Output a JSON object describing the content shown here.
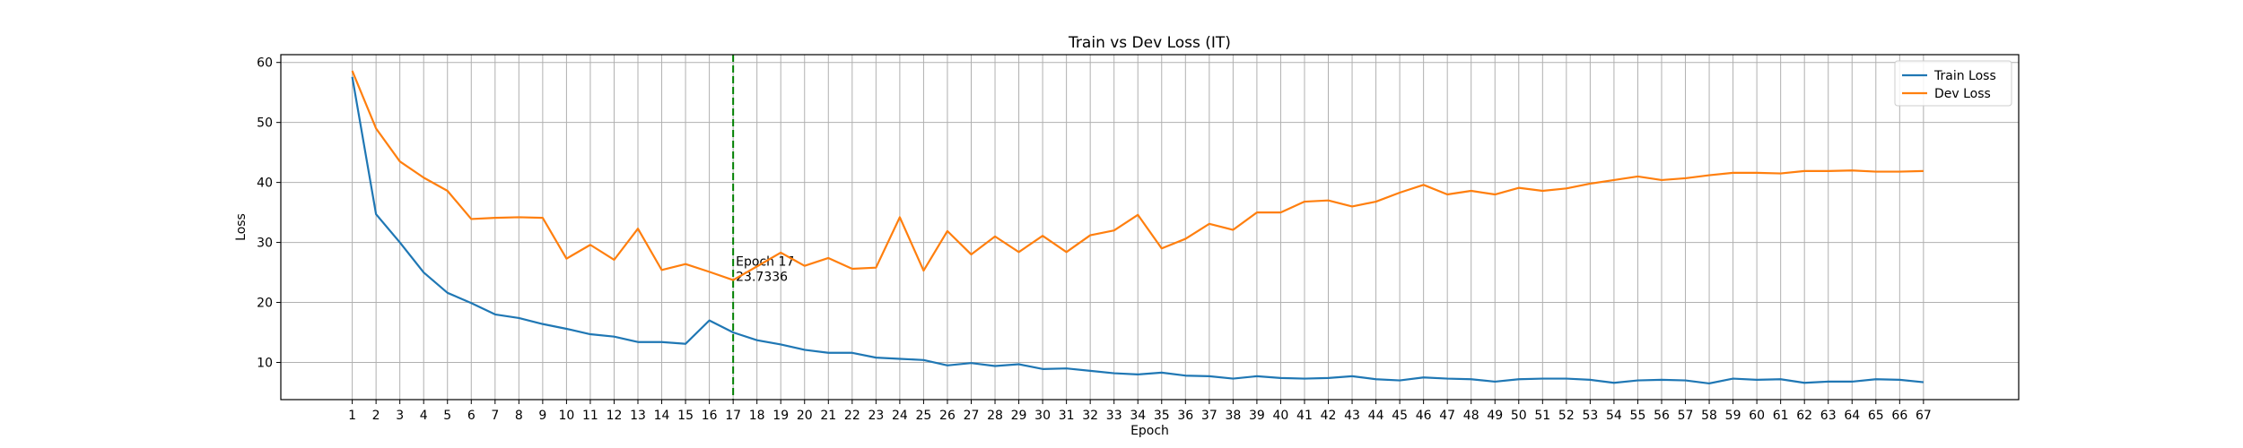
{
  "chart_data": {
    "type": "line",
    "title": "Train vs Dev Loss (IT)",
    "xlabel": "Epoch",
    "ylabel": "Loss",
    "x": [
      1,
      2,
      3,
      4,
      5,
      6,
      7,
      8,
      9,
      10,
      11,
      12,
      13,
      14,
      15,
      16,
      17,
      18,
      19,
      20,
      21,
      22,
      23,
      24,
      25,
      26,
      27,
      28,
      29,
      30,
      31,
      32,
      33,
      34,
      35,
      36,
      37,
      38,
      39,
      40,
      41,
      42,
      43,
      44,
      45,
      46,
      47,
      48,
      49,
      50,
      51,
      52,
      53,
      54,
      55,
      56,
      57,
      58,
      59,
      60,
      61,
      62,
      63,
      64,
      65,
      66,
      67
    ],
    "xlim": [
      -2,
      71
    ],
    "ylim": [
      3.8,
      61.3
    ],
    "yticks": [
      10,
      20,
      30,
      40,
      50,
      60
    ],
    "grid": true,
    "legend_position": "upper right",
    "series": [
      {
        "name": "Train Loss",
        "color": "#1f77b4",
        "values": [
          57.6,
          34.7,
          30.0,
          25.0,
          21.6,
          19.9,
          18.0,
          17.4,
          16.4,
          15.6,
          14.7,
          14.3,
          13.4,
          13.4,
          13.1,
          17.0,
          15.0,
          13.7,
          13.0,
          12.1,
          11.6,
          11.6,
          10.8,
          10.6,
          10.4,
          9.5,
          9.9,
          9.4,
          9.7,
          8.9,
          9.0,
          8.6,
          8.2,
          8.0,
          8.3,
          7.8,
          7.7,
          7.3,
          7.7,
          7.4,
          7.3,
          7.4,
          7.7,
          7.2,
          7.0,
          7.5,
          7.3,
          7.2,
          6.8,
          7.2,
          7.3,
          7.3,
          7.1,
          6.6,
          7.0,
          7.1,
          7.0,
          6.5,
          7.3,
          7.1,
          7.2,
          6.6,
          6.8,
          6.8,
          7.2,
          7.1,
          6.7
        ]
      },
      {
        "name": "Dev Loss",
        "color": "#ff7f0e",
        "values": [
          58.6,
          49.0,
          43.5,
          40.8,
          38.6,
          33.9,
          34.1,
          34.2,
          34.1,
          27.3,
          29.6,
          27.1,
          32.3,
          25.4,
          26.4,
          25.1,
          23.7336,
          26.0,
          28.3,
          26.1,
          27.4,
          25.6,
          25.8,
          34.2,
          25.3,
          31.9,
          28.0,
          31.0,
          28.4,
          31.1,
          28.4,
          31.2,
          32.0,
          34.6,
          29.0,
          30.6,
          33.1,
          32.1,
          35.0,
          35.0,
          36.8,
          37.0,
          36.0,
          36.8,
          38.3,
          39.6,
          38.0,
          38.6,
          38.0,
          39.1,
          38.6,
          39.0,
          39.8,
          40.4,
          41.0,
          40.4,
          40.7,
          41.2,
          41.6,
          41.6,
          41.5,
          41.9,
          41.9,
          42.0,
          41.8,
          41.8,
          41.9
        ]
      }
    ],
    "annotation": {
      "x": 17,
      "line_color": "#008000",
      "line_style": "dashed",
      "text_line1": "Epoch 17",
      "text_line2": "23.7336"
    }
  }
}
